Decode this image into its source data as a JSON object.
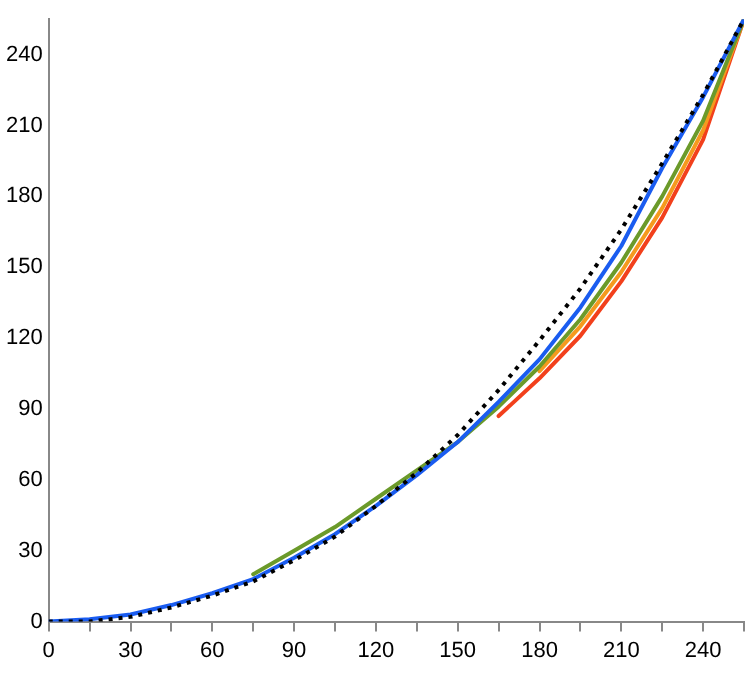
{
  "chart_data": {
    "type": "line",
    "x": [
      0,
      15,
      30,
      45,
      60,
      75,
      90,
      105,
      120,
      135,
      150,
      165,
      180,
      195,
      210,
      225,
      240,
      255
    ],
    "xlim": [
      0,
      255
    ],
    "ylim": [
      0,
      255
    ],
    "xticks": [
      0,
      {
        "value": 15,
        "label": null
      },
      30,
      {
        "value": 45,
        "label": null
      },
      60,
      {
        "value": 75,
        "label": null
      },
      90,
      {
        "value": 105,
        "label": null
      },
      120,
      {
        "value": 135,
        "label": null
      },
      150,
      {
        "value": 165,
        "label": null
      },
      180,
      {
        "value": 195,
        "label": null
      },
      210,
      {
        "value": 225,
        "label": null
      },
      240,
      {
        "value": 255,
        "label": null
      }
    ],
    "yticks": [
      0,
      30,
      60,
      90,
      120,
      150,
      180,
      210,
      240
    ],
    "grid": false,
    "legend": false,
    "marker": "none",
    "series": [
      {
        "color": "#f2401c",
        "line_style": "solid",
        "values": [
          null,
          null,
          null,
          null,
          null,
          null,
          null,
          null,
          null,
          null,
          null,
          87,
          103,
          121,
          144,
          171,
          204,
          255
        ]
      },
      {
        "color": "#f59a1e",
        "line_style": "solid",
        "values": [
          null,
          null,
          null,
          null,
          null,
          null,
          null,
          null,
          null,
          null,
          null,
          null,
          106,
          125,
          148,
          175,
          208,
          255
        ]
      },
      {
        "color": "#6b9a2a",
        "line_style": "solid",
        "values": [
          null,
          null,
          null,
          null,
          null,
          20,
          30,
          40,
          52,
          64,
          76,
          91,
          108,
          128,
          152,
          180,
          212,
          255
        ]
      },
      {
        "color": "#1a5cf0",
        "line_style": "solid",
        "values": [
          0,
          1,
          3,
          7,
          12,
          18,
          27,
          37,
          49,
          62,
          76,
          93,
          111,
          133,
          159,
          192,
          222,
          255
        ]
      },
      {
        "color": "#000000",
        "line_style": "dotted",
        "values": [
          0,
          0,
          2,
          6,
          11,
          17,
          26,
          36,
          49,
          63,
          79,
          98,
          119,
          141,
          166,
          194,
          223,
          255
        ]
      }
    ]
  }
}
